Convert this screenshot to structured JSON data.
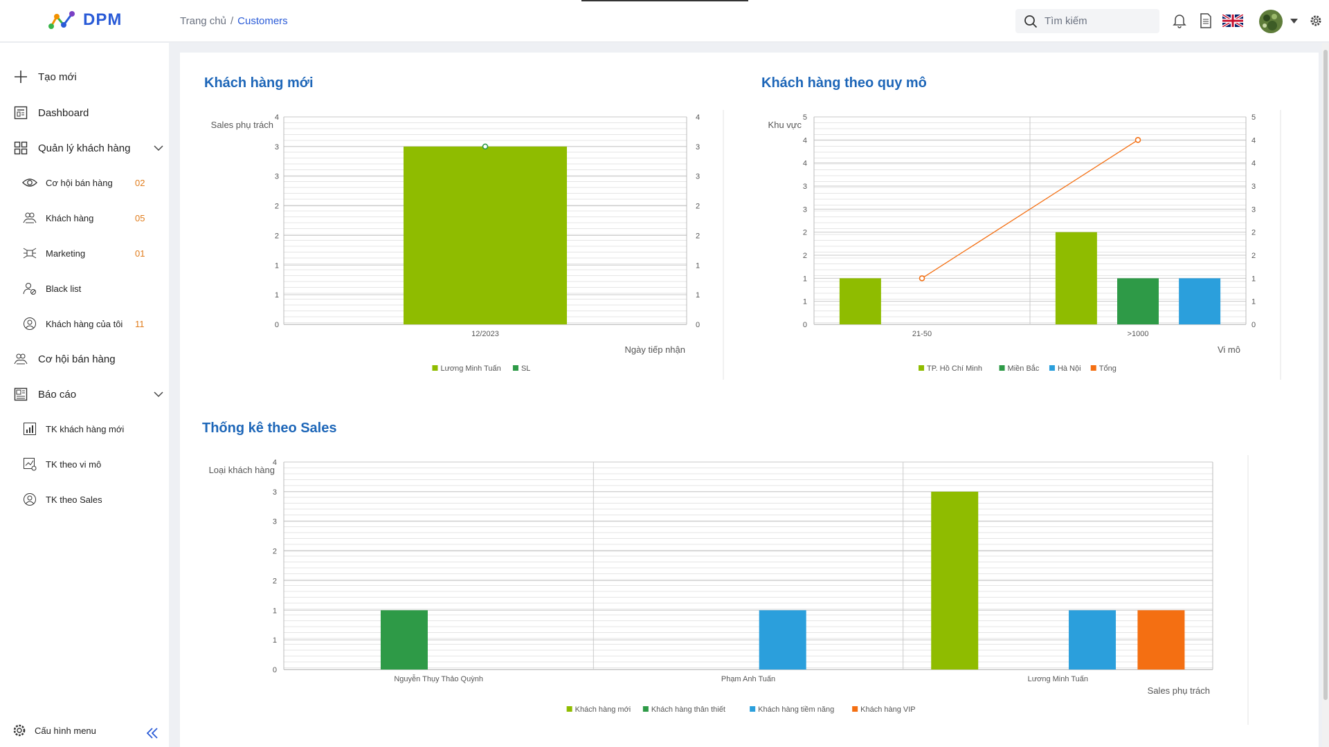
{
  "header": {
    "logo_text": "DPM",
    "breadcrumb": [
      "Trang chủ",
      "Customers"
    ],
    "search_placeholder": "Tìm kiếm",
    "icons": [
      "search-icon",
      "bell-icon",
      "document-icon",
      "uk-flag-icon",
      "avatar",
      "caret-down-icon",
      "gear-icon"
    ]
  },
  "sidebar": {
    "items": [
      {
        "label": "Tạo mới",
        "icon": "plus-icon",
        "level": 1
      },
      {
        "label": "Dashboard",
        "icon": "dashboard-icon",
        "level": 1
      },
      {
        "label": "Quản lý khách hàng",
        "icon": "grid-icon",
        "level": 1,
        "expandable": true
      },
      {
        "label": "Cơ hội bán hàng",
        "icon": "eye-icon",
        "level": 2,
        "badge": "02"
      },
      {
        "label": "Khách hàng",
        "icon": "users-icon",
        "level": 2,
        "badge": "05"
      },
      {
        "label": "Marketing",
        "icon": "marketing-icon",
        "level": 2,
        "badge": "01"
      },
      {
        "label": "Black list",
        "icon": "user-block-icon",
        "level": 2
      },
      {
        "label": "Khách hàng của tôi",
        "icon": "user-circle-icon",
        "level": 2,
        "badge": "11"
      },
      {
        "label": "Cơ hội bán hàng",
        "icon": "users-icon",
        "level": 1
      },
      {
        "label": "Báo cáo",
        "icon": "report-icon",
        "level": 1,
        "expandable": true
      },
      {
        "label": "TK khách hàng mới",
        "icon": "chart-icon",
        "level": 2
      },
      {
        "label": "TK theo vi mô",
        "icon": "chart-check-icon",
        "level": 2
      },
      {
        "label": "TK theo Sales",
        "icon": "user-circle-icon",
        "level": 2
      }
    ],
    "footer_label": "Cấu hình menu"
  },
  "colors": {
    "accent": "#1d66b8",
    "green_light": "#8fbc00",
    "green_dark": "#2e9a47",
    "blue": "#2b9fdc",
    "orange": "#f46f12",
    "badge": "#e07b1a"
  },
  "chart_data": [
    {
      "type": "bar",
      "title": "Khách hàng mới",
      "ylabel": "Sales phụ trách",
      "xlabel": "Ngày tiếp nhận",
      "categories": [
        "12/2023"
      ],
      "yticks": [
        "0",
        "1",
        "1",
        "2",
        "2",
        "3",
        "3",
        "4"
      ],
      "ylim": [
        0,
        3.5
      ],
      "series": [
        {
          "name": "Lương Minh Tuấn",
          "kind": "bar",
          "color": "#8fbc00",
          "values": [
            3
          ]
        },
        {
          "name": "SL",
          "kind": "line",
          "color": "#2e9a47",
          "values": [
            3
          ]
        }
      ],
      "legend": "bottom-center"
    },
    {
      "type": "bar",
      "title": "Khách hàng theo quy mô",
      "ylabel": "Khu vực",
      "xlabel": "Vi mô",
      "categories": [
        "21-50",
        ">1000"
      ],
      "yticks": [
        "0",
        "1",
        "1",
        "2",
        "2",
        "3",
        "3",
        "4",
        "4",
        "5"
      ],
      "ylim": [
        0,
        4.5
      ],
      "series": [
        {
          "name": "TP. Hồ Chí Minh",
          "kind": "bar",
          "color": "#8fbc00",
          "values": [
            1,
            2
          ]
        },
        {
          "name": "Miền Bắc",
          "kind": "bar",
          "color": "#2e9a47",
          "values": [
            0,
            1
          ]
        },
        {
          "name": "Hà Nội",
          "kind": "bar",
          "color": "#2b9fdc",
          "values": [
            0,
            1
          ]
        },
        {
          "name": "Tổng",
          "kind": "line",
          "color": "#f46f12",
          "values": [
            1,
            4
          ]
        }
      ],
      "legend": "bottom-center"
    },
    {
      "type": "bar",
      "title": "Thống kê theo Sales",
      "ylabel": "Loại khách hàng",
      "xlabel": "Sales phụ trách",
      "categories": [
        "Nguyễn Thụy Thảo Quỳnh",
        "Phạm Anh Tuấn",
        "Lương Minh Tuấn"
      ],
      "yticks": [
        "0",
        "1",
        "1",
        "2",
        "2",
        "3",
        "3",
        "4"
      ],
      "ylim": [
        0,
        3.5
      ],
      "series": [
        {
          "name": "Khách hàng mới",
          "kind": "bar",
          "color": "#8fbc00",
          "values": [
            0,
            0,
            3
          ]
        },
        {
          "name": "Khách hàng thân thiết",
          "kind": "bar",
          "color": "#2e9a47",
          "values": [
            1,
            0,
            0
          ]
        },
        {
          "name": "Khách hàng tiềm năng",
          "kind": "bar",
          "color": "#2b9fdc",
          "values": [
            0,
            1,
            1
          ]
        },
        {
          "name": "Khách hàng VIP",
          "kind": "bar",
          "color": "#f46f12",
          "values": [
            0,
            0,
            1
          ]
        }
      ],
      "legend": "bottom-center"
    }
  ]
}
